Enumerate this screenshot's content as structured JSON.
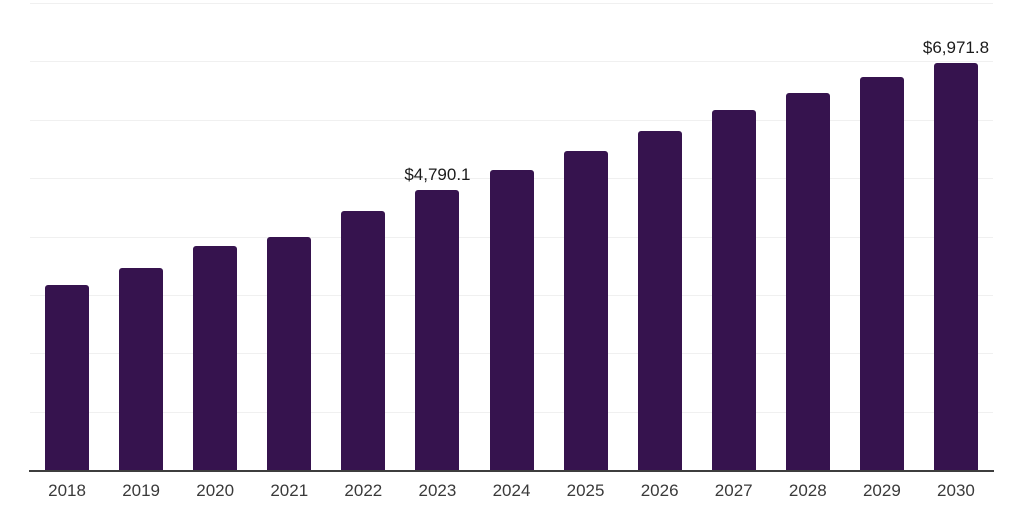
{
  "chart_data": {
    "type": "bar",
    "title": "",
    "xlabel": "",
    "ylabel": "",
    "categories": [
      "2018",
      "2019",
      "2020",
      "2021",
      "2022",
      "2023",
      "2024",
      "2025",
      "2026",
      "2027",
      "2028",
      "2029",
      "2030"
    ],
    "values": [
      3175,
      3460,
      3845,
      3985,
      4445,
      4790.1,
      5140,
      5465,
      5805,
      6160,
      6450,
      6735,
      6971.8
    ],
    "data_labels": [
      {
        "category": "2023",
        "text": "$4,790.1"
      },
      {
        "category": "2030",
        "text": "$6,971.8"
      }
    ],
    "ylim": [
      0,
      8000
    ],
    "ytick_step": 1000,
    "yticks_labeled": false,
    "grid": "horizontal",
    "legend_position": "none",
    "colors": {
      "bar": "#36134e",
      "grid": "#f0f0f0",
      "axis": "#3d3d3d",
      "tick_label": "#3a3a3a",
      "value_label": "#1b1b1b",
      "background": "#ffffff"
    }
  }
}
